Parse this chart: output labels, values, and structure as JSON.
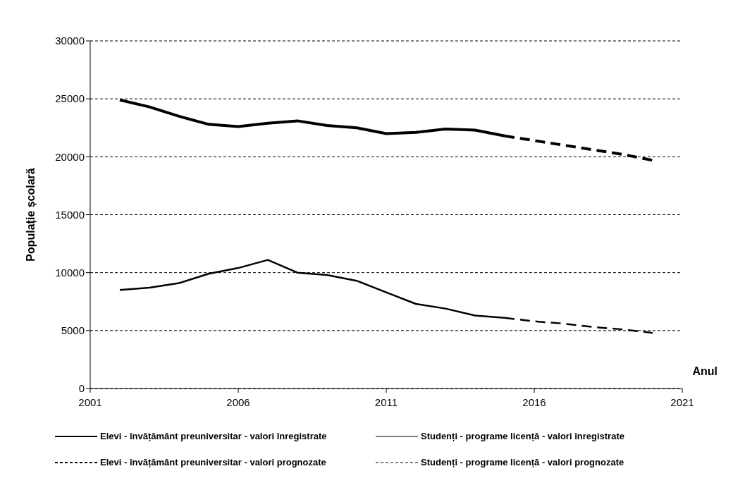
{
  "chart_data": {
    "type": "line",
    "ylabel": "Populație școlară",
    "xlabel": "Anul",
    "xlim": [
      2001,
      2021
    ],
    "xticks": [
      2001,
      2006,
      2011,
      2016,
      2021
    ],
    "ylim": [
      0,
      30000
    ],
    "yticks": [
      0,
      5000,
      10000,
      15000,
      20000,
      25000,
      30000
    ],
    "grid": "y",
    "legend": "bottom",
    "marker": "none",
    "series": [
      {
        "name": "Elevi - învățământ preuniversitar - valori înregistrate",
        "color": "#000000",
        "line_style": "solid",
        "x": [
          2002,
          2003,
          2004,
          2005,
          2006,
          2007,
          2008,
          2009,
          2010,
          2011,
          2012,
          2013,
          2014,
          2015
        ],
        "values": [
          24900,
          24300,
          23500,
          22800,
          22600,
          22900,
          23100,
          22700,
          22500,
          22000,
          22100,
          22400,
          22300,
          21800
        ]
      },
      {
        "name": "Studenți - programe licență - valori înregistrate",
        "color": "#000000",
        "line_style": "solid",
        "x": [
          2002,
          2003,
          2004,
          2005,
          2006,
          2007,
          2008,
          2009,
          2010,
          2011,
          2012,
          2013,
          2014,
          2015
        ],
        "values": [
          8500,
          8700,
          9100,
          9900,
          10400,
          11100,
          10000,
          9800,
          9300,
          8300,
          7300,
          6900,
          6300,
          6100
        ]
      },
      {
        "name": "Elevi - învățământ preuniversitar - valori prognozate",
        "color": "#000000",
        "line_style": "dashed",
        "x": [
          2015,
          2016,
          2017,
          2018,
          2019,
          2020
        ],
        "values": [
          21800,
          21400,
          21000,
          20600,
          20200,
          19700
        ]
      },
      {
        "name": "Studenți - programe licență - valori prognozate",
        "color": "#000000",
        "line_style": "dashed",
        "x": [
          2015,
          2016,
          2017,
          2018,
          2019,
          2020
        ],
        "values": [
          6100,
          5800,
          5600,
          5300,
          5100,
          4800
        ]
      }
    ]
  }
}
